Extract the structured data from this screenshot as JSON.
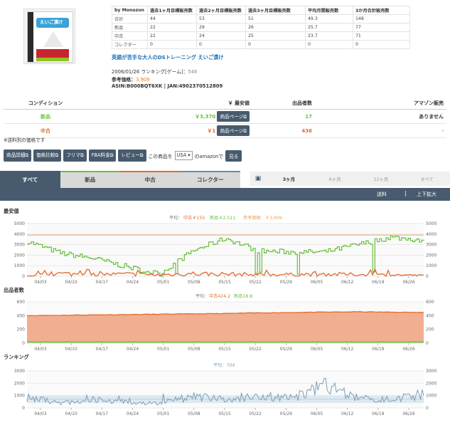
{
  "stats": {
    "brand": "by Monozon",
    "columns": [
      "過去1ヶ月目標販売数",
      "過去2ヶ月目標販売数",
      "過去3ヶ月目標販売数",
      "平均月間販売数",
      "3か月合計販売数"
    ],
    "rows": [
      {
        "label": "合計",
        "values": [
          "44",
          "53",
          "51",
          "49.3",
          "148"
        ]
      },
      {
        "label": "新品",
        "values": [
          "22",
          "29",
          "26",
          "25.7",
          "77"
        ]
      },
      {
        "label": "中古",
        "values": [
          "22",
          "24",
          "25",
          "23.7",
          "71"
        ]
      },
      {
        "label": "コレクター",
        "values": [
          "0",
          "0",
          "0",
          "0",
          "0"
        ]
      }
    ]
  },
  "product": {
    "title": "英語が苦手な大人のDSトレーニング えいご漬け",
    "release_prefix": "2006/01/26 ランキング[ゲーム]：",
    "rank": "546",
    "ref_label": "参考価格：",
    "ref_price": "3,909",
    "asin_line": "ASIN:B000BQT6XK | JAN:4902370512809",
    "image_title": "えいご漬け"
  },
  "condition_table": {
    "headers": [
      "コンディション",
      "￥ 最安値",
      "出品者数",
      "アマゾン販売"
    ],
    "rows": [
      {
        "cond": "新品",
        "price": "￥3,370",
        "btn": "商品ページ⧉",
        "sellers": "17",
        "amazon": "ありません"
      },
      {
        "cond": "中古",
        "price": "￥1",
        "btn": "商品ページ⧉",
        "sellers": "436",
        "amazon": "-"
      }
    ],
    "note": "※送料別の価格です"
  },
  "toolbar": {
    "buttons": [
      "商品詳細⧉",
      "価格比較⧉",
      "フリマ⧉",
      "FBA料金⧉",
      "レビュー⧉"
    ],
    "text1": "この商品を",
    "select_value": "USA ▾",
    "text2": "のamazonで",
    "go": "見る"
  },
  "tabs": [
    "すべて",
    "新品",
    "中古",
    "コレクター"
  ],
  "ranges": [
    "3ヶ月",
    "6ヶ月",
    "12ヶ月",
    "すべて"
  ],
  "darkbar": {
    "shipping": "送料",
    "zoom": "上下拡大"
  },
  "x_ticks": [
    "04/03",
    "04/10",
    "04/17",
    "04/24",
    "05/01",
    "05/08",
    "05/15",
    "05/22",
    "05/29",
    "06/05",
    "06/12",
    "06/19",
    "06/26"
  ],
  "charts": {
    "price": {
      "title": "最安値",
      "legend_prefix": "平均：",
      "legend_used": "中古￥155",
      "legend_new": "新品￥2,511",
      "legend_ref": "参考価格：￥3,909"
    },
    "sellers": {
      "title": "出品者数",
      "legend_prefix": "平均：",
      "legend_used": "中古424.2",
      "legend_new": "新品18.8"
    },
    "rank": {
      "title": "ランキング",
      "legend": "平均：704"
    }
  },
  "colors": {
    "new": "#6abf3e",
    "used": "#e46a2b",
    "ref": "#e9a25c",
    "rank": "#7aa0b8",
    "dark": "#485b6e"
  },
  "chart_data": [
    {
      "type": "line",
      "title": "最安値",
      "x": [
        "04/03",
        "04/10",
        "04/17",
        "04/24",
        "05/01",
        "05/08",
        "05/15",
        "05/22",
        "05/29",
        "06/05",
        "06/12",
        "06/19",
        "06/26"
      ],
      "ylim": [
        0,
        5000
      ],
      "yticks": [
        0,
        1000,
        2000,
        3000,
        4000,
        5000
      ],
      "series": [
        {
          "name": "新品",
          "values": [
            3300,
            2200,
            1700,
            900,
            200,
            2400,
            3600,
            2400,
            2300,
            2300,
            3000,
            3700,
            3400
          ]
        },
        {
          "name": "中古",
          "values": [
            10,
            300,
            200,
            250,
            150,
            300,
            250,
            200,
            200,
            250,
            200,
            150,
            100
          ]
        },
        {
          "name": "参考価格",
          "values": [
            3909,
            3909,
            3909,
            3909,
            3909,
            3909,
            3909,
            3909,
            3909,
            3909,
            3909,
            3909,
            3909
          ]
        }
      ]
    },
    {
      "type": "area",
      "title": "出品者数",
      "x": [
        "04/03",
        "04/10",
        "04/17",
        "04/24",
        "05/01",
        "05/08",
        "05/15",
        "05/22",
        "05/29",
        "06/05",
        "06/12",
        "06/19",
        "06/26"
      ],
      "ylim": [
        0,
        600
      ],
      "yticks": [
        0,
        200,
        400,
        600
      ],
      "series": [
        {
          "name": "中古",
          "values": [
            400,
            405,
            410,
            415,
            420,
            425,
            430,
            440,
            445,
            450,
            455,
            450,
            445
          ]
        },
        {
          "name": "新品",
          "values": [
            18,
            18,
            19,
            19,
            19,
            19,
            19,
            19,
            19,
            19,
            18,
            18,
            18
          ]
        }
      ]
    },
    {
      "type": "line",
      "title": "ランキング",
      "x": [
        "04/03",
        "04/10",
        "04/17",
        "04/24",
        "05/01",
        "05/08",
        "05/15",
        "05/22",
        "05/29",
        "06/05",
        "06/12",
        "06/19",
        "06/26"
      ],
      "ylim": [
        0,
        3000
      ],
      "yticks": [
        0,
        1000,
        2000,
        3000
      ],
      "series": [
        {
          "name": "ランキング",
          "values": [
            900,
            400,
            700,
            500,
            400,
            1000,
            700,
            1100,
            800,
            1900,
            900,
            700,
            1200
          ]
        }
      ]
    }
  ]
}
